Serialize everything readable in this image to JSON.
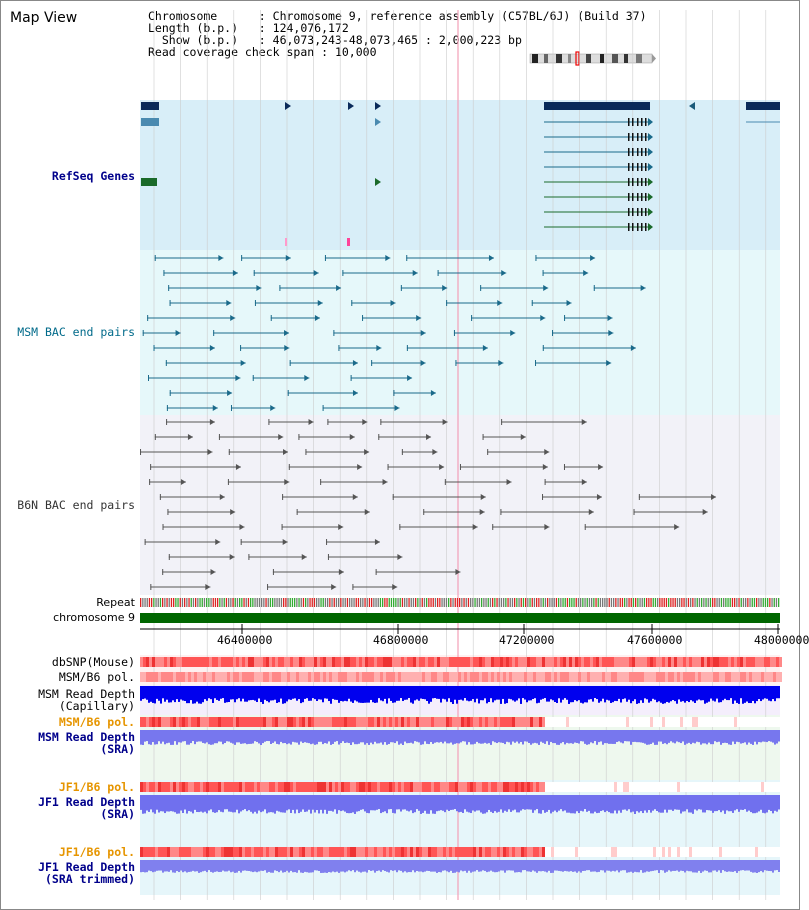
{
  "title": "Map View",
  "info": {
    "chromosome_label": "Chromosome",
    "chromosome_value": "Chromosome 9, reference assembly (C57BL/6J) (Build 37)",
    "length_label": "Length (b.p.)",
    "length_value": "124,076,172",
    "show_label": "Show (b.p.)",
    "show_value": "46,073,243-48,073,465 : 2,000,223 bp",
    "coverage_label": "Read coverage check span",
    "coverage_value": "10,000"
  },
  "tracks": {
    "refseq": "RefSeq Genes",
    "msm_bac": "MSM BAC end pairs",
    "b6n_bac": "B6N BAC end pairs",
    "repeat": "Repeat",
    "chromosome": "chromosome 9",
    "dbsnp": "dbSNP(Mouse)",
    "msm_b6_pol1": "MSM/B6 pol.",
    "msm_read_depth_cap": "MSM Read Depth",
    "msm_read_depth_cap_sub": "(Capillary)",
    "msm_b6_pol2": "MSM/B6 pol.",
    "msm_read_depth_sra": "MSM Read Depth",
    "msm_read_depth_sra_sub": "(SRA)",
    "jf1_b6_pol1": "JF1/B6 pol.",
    "jf1_read_depth_sra": "JF1 Read Depth",
    "jf1_read_depth_sra_sub": "(SRA)",
    "jf1_b6_pol2": "JF1/B6 pol.",
    "jf1_read_depth_trim": "JF1 Read Depth",
    "jf1_read_depth_trim_sub": "(SRA trimmed)"
  },
  "axis": {
    "ticks": [
      "46400000",
      "46800000",
      "47200000",
      "47600000",
      "48000000"
    ]
  },
  "colors": {
    "refseq_bg": "#d8eef8",
    "msm_bg": "#e6f8fa",
    "b6n_bg": "#f2f2f8",
    "chromosome": "#006600",
    "depth_blue": "#0000ff",
    "depth_lavender": "#7777ee",
    "snp_red": "#ff7777"
  }
}
